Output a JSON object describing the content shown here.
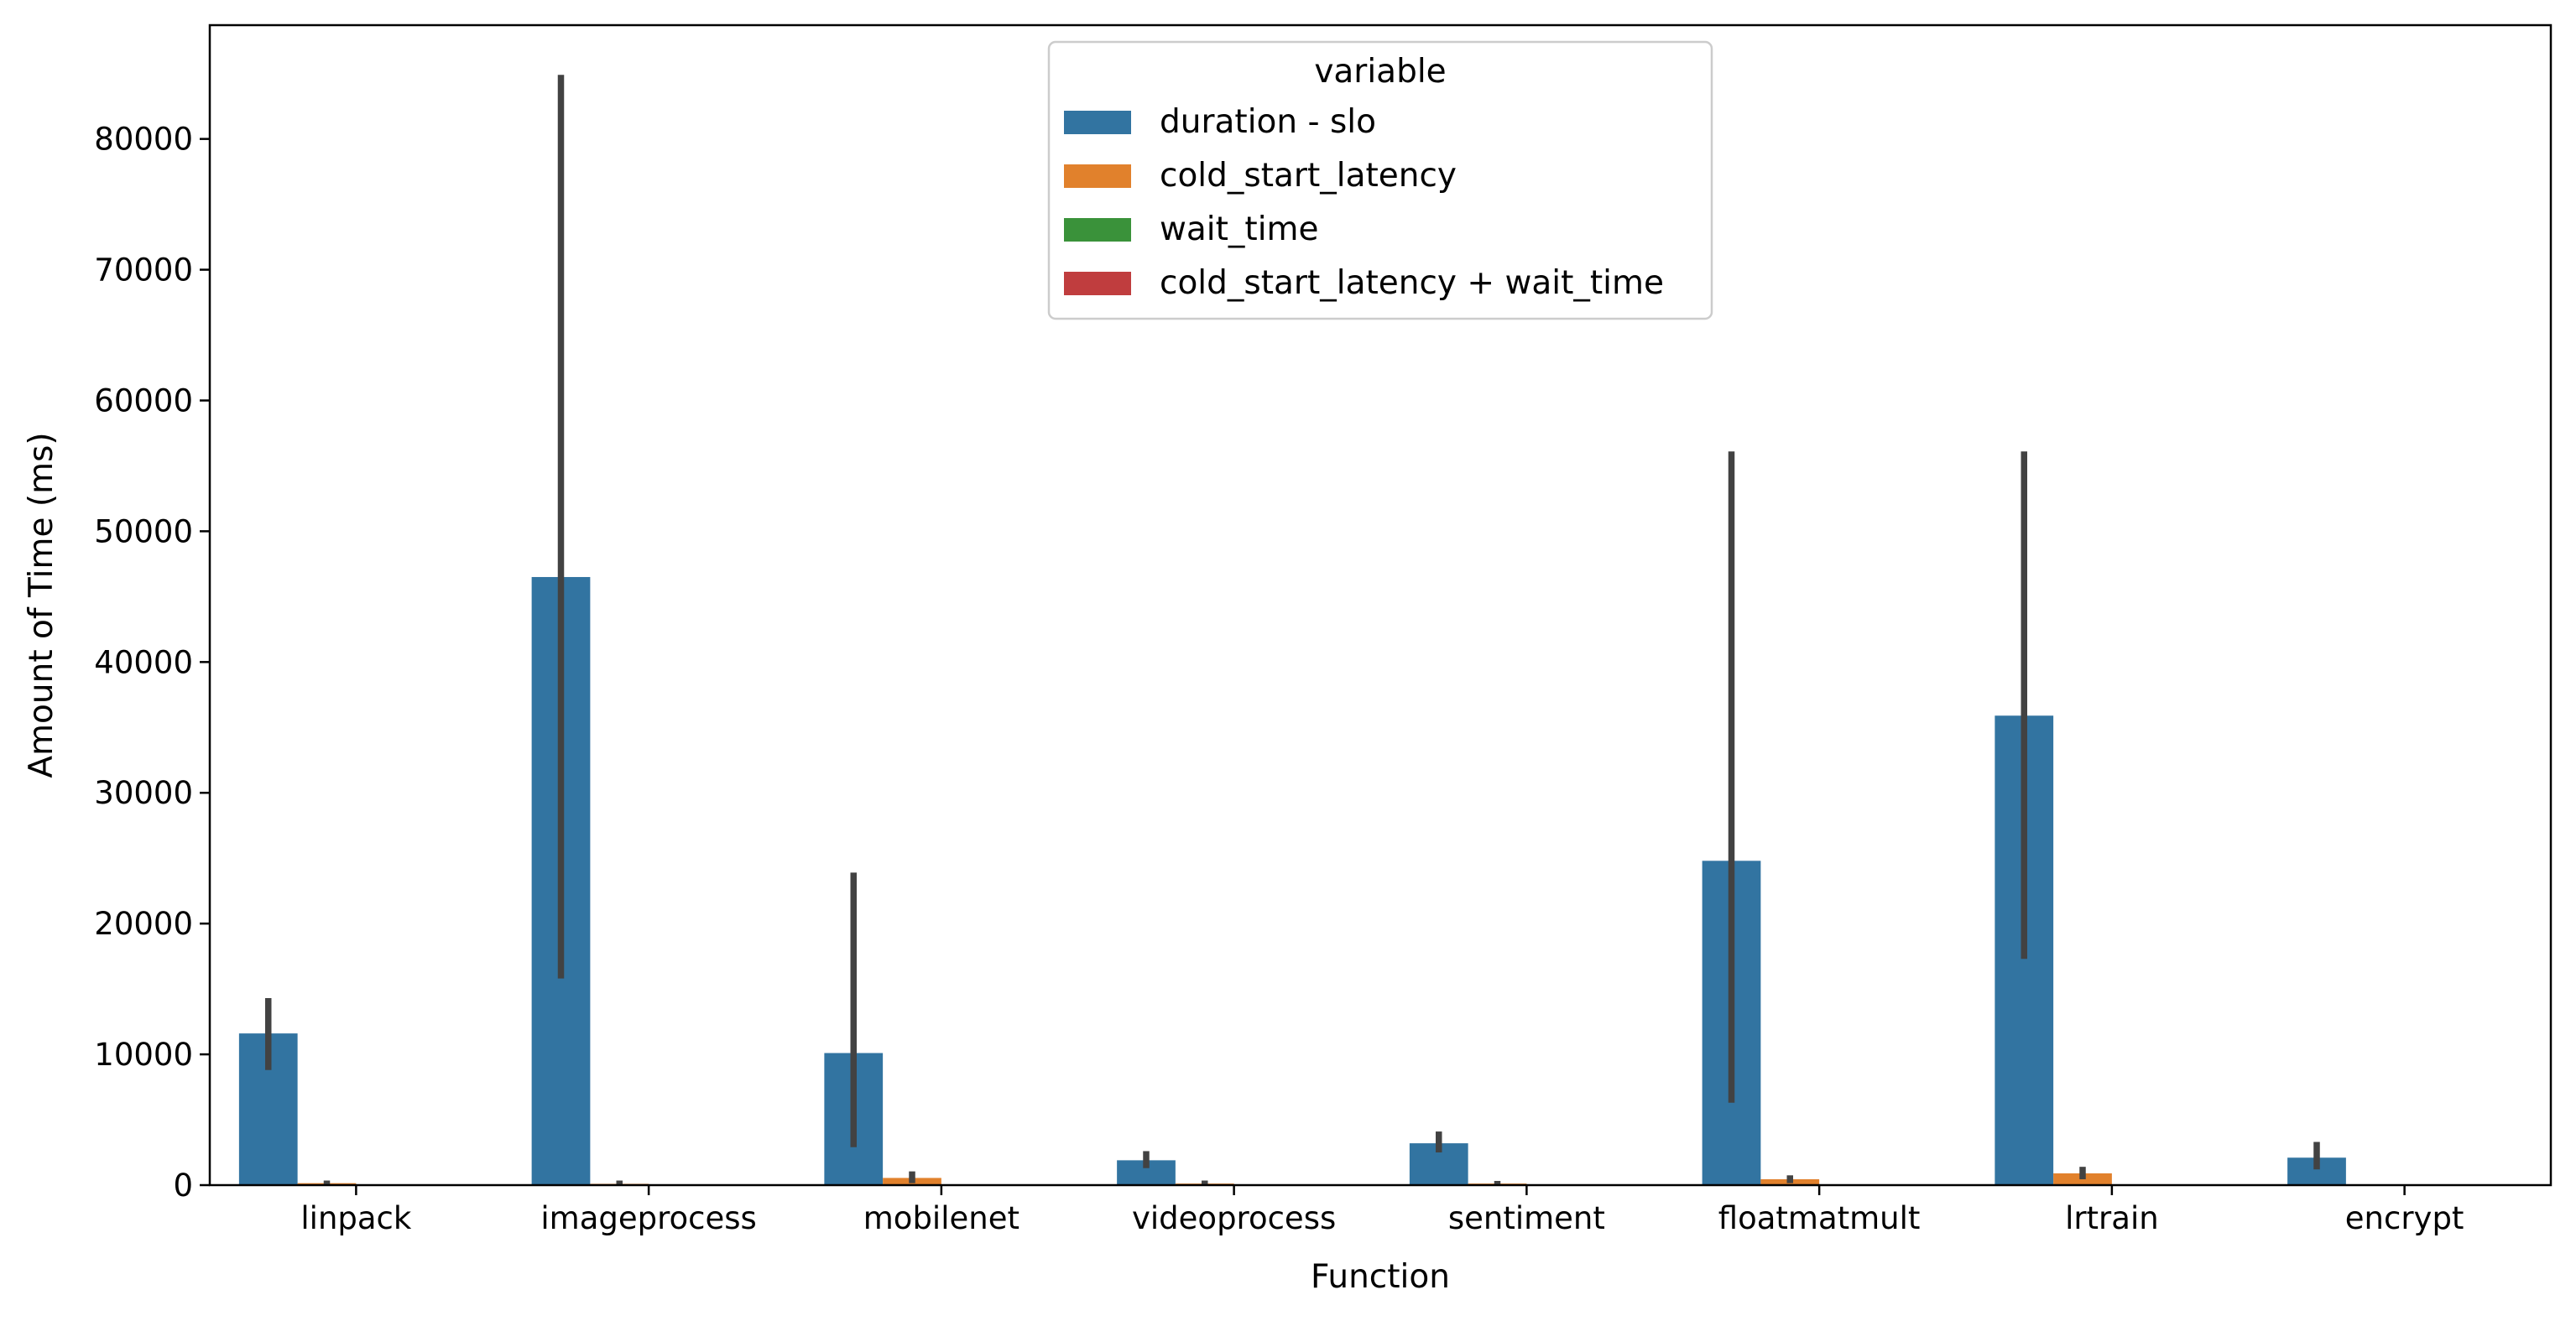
{
  "chart_data": {
    "type": "bar",
    "xlabel": "Function",
    "ylabel": "Amount of Time (ms)",
    "ylim": [
      0,
      88700
    ],
    "yticks": [
      0,
      10000,
      20000,
      30000,
      40000,
      50000,
      60000,
      70000,
      80000
    ],
    "categories": [
      "linpack",
      "imageprocess",
      "mobilenet",
      "videoprocess",
      "sentiment",
      "floatmatmult",
      "lrtrain",
      "encrypt"
    ],
    "legend": {
      "title": "variable",
      "placement": "top-center"
    },
    "series": [
      {
        "name": "duration - slo",
        "color": "#3274a1",
        "values": [
          11600,
          46500,
          10100,
          1900,
          3200,
          24800,
          35900,
          2100
        ],
        "error_low": [
          8800,
          15800,
          2900,
          1300,
          2500,
          6300,
          17300,
          1200
        ],
        "error_high": [
          14300,
          84900,
          23900,
          2600,
          4100,
          56100,
          56100,
          3300
        ]
      },
      {
        "name": "cold_start_latency",
        "color": "#e1812c",
        "values": [
          150,
          100,
          550,
          120,
          120,
          450,
          900,
          0
        ],
        "error_low": [
          30,
          20,
          150,
          20,
          20,
          150,
          450,
          0
        ],
        "error_high": [
          350,
          350,
          1050,
          350,
          320,
          750,
          1400,
          0
        ]
      },
      {
        "name": "wait_time",
        "color": "#3a923a",
        "values": [
          0,
          0,
          0,
          0,
          0,
          0,
          0,
          0
        ]
      },
      {
        "name": "cold_start_latency + wait_time",
        "color": "#c03d3e",
        "values": [
          0,
          0,
          0,
          0,
          0,
          0,
          0,
          0
        ]
      }
    ],
    "error_bar_color": "#424242",
    "grid": false
  }
}
